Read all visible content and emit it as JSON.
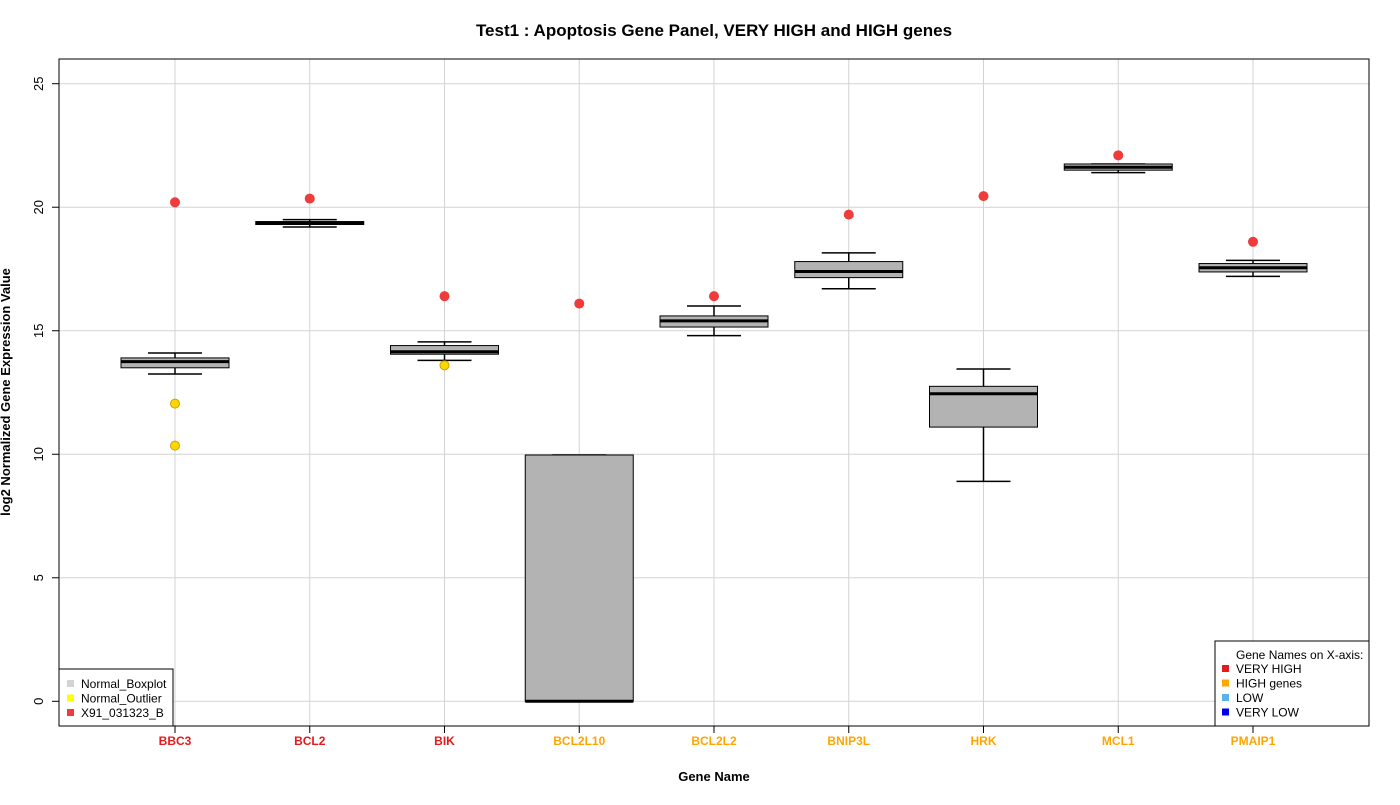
{
  "chart_data": {
    "type": "boxplot",
    "title": "Test1 : Apoptosis Gene Panel, VERY HIGH and HIGH genes",
    "xlabel": "Gene Name",
    "ylabel": "log2 Normalized Gene Expression Value",
    "ylim": [
      -1,
      26
    ],
    "yticks": [
      0,
      5,
      10,
      15,
      20,
      25
    ],
    "grid": true,
    "categories": [
      {
        "name": "BBC3",
        "group": "VERY HIGH",
        "min": 13.25,
        "q1": 13.5,
        "median": 13.75,
        "q3": 13.9,
        "max": 14.1,
        "normal_outliers": [
          12.05,
          10.35
        ],
        "sample_value": 20.2
      },
      {
        "name": "BCL2",
        "group": "VERY HIGH",
        "min": 19.2,
        "q1": 19.3,
        "median": 19.35,
        "q3": 19.42,
        "max": 19.5,
        "normal_outliers": [],
        "sample_value": 20.35
      },
      {
        "name": "BIK",
        "group": "VERY HIGH",
        "min": 13.8,
        "q1": 14.05,
        "median": 14.15,
        "q3": 14.4,
        "max": 14.55,
        "normal_outliers": [
          13.6
        ],
        "sample_value": 16.4
      },
      {
        "name": "BCL2L10",
        "group": "HIGH genes",
        "min": 0.0,
        "q1": 0.0,
        "median": 0.0,
        "q3": 9.97,
        "max": 9.97,
        "normal_outliers": [],
        "sample_value": 16.1
      },
      {
        "name": "BCL2L2",
        "group": "HIGH genes",
        "min": 14.8,
        "q1": 15.15,
        "median": 15.4,
        "q3": 15.6,
        "max": 16.0,
        "normal_outliers": [],
        "sample_value": 16.4
      },
      {
        "name": "BNIP3L",
        "group": "HIGH genes",
        "min": 16.7,
        "q1": 17.15,
        "median": 17.4,
        "q3": 17.8,
        "max": 18.15,
        "normal_outliers": [],
        "sample_value": 19.7
      },
      {
        "name": "HRK",
        "group": "HIGH genes",
        "min": 8.9,
        "q1": 11.1,
        "median": 12.45,
        "q3": 12.75,
        "max": 13.45,
        "normal_outliers": [],
        "sample_value": 20.45
      },
      {
        "name": "MCL1",
        "group": "HIGH genes",
        "min": 21.4,
        "q1": 21.5,
        "median": 21.62,
        "q3": 21.75,
        "max": 21.75,
        "normal_outliers": [],
        "sample_value": 22.1
      },
      {
        "name": "PMAIP1",
        "group": "HIGH genes",
        "min": 17.2,
        "q1": 17.38,
        "median": 17.55,
        "q3": 17.72,
        "max": 17.85,
        "normal_outliers": [],
        "sample_value": 18.6
      }
    ],
    "series_legend": {
      "placement": "bottom-left",
      "items": [
        {
          "label": "Normal_Boxplot",
          "color": "#d3d3d3"
        },
        {
          "label": "Normal_Outlier",
          "color": "#ffff00"
        },
        {
          "label": "X91_031323_B",
          "color": "#ee3b3b"
        }
      ]
    },
    "group_legend": {
      "placement": "bottom-right",
      "title": "Gene Names on X-axis:",
      "items": [
        {
          "label": "VERY HIGH",
          "color": "#e41a1c"
        },
        {
          "label": "HIGH genes",
          "color": "#ffa500"
        },
        {
          "label": "LOW",
          "color": "#5ab4e8"
        },
        {
          "label": "VERY LOW",
          "color": "#0000ee"
        }
      ]
    },
    "colors": {
      "box_fill": "#b3b3b3",
      "normal_outlier": "#ffd700",
      "sample_point": "#ee3b3b",
      "grid": "#d3d3d3",
      "very_high_label": "#e41a1c",
      "high_label": "#ffa500"
    }
  }
}
